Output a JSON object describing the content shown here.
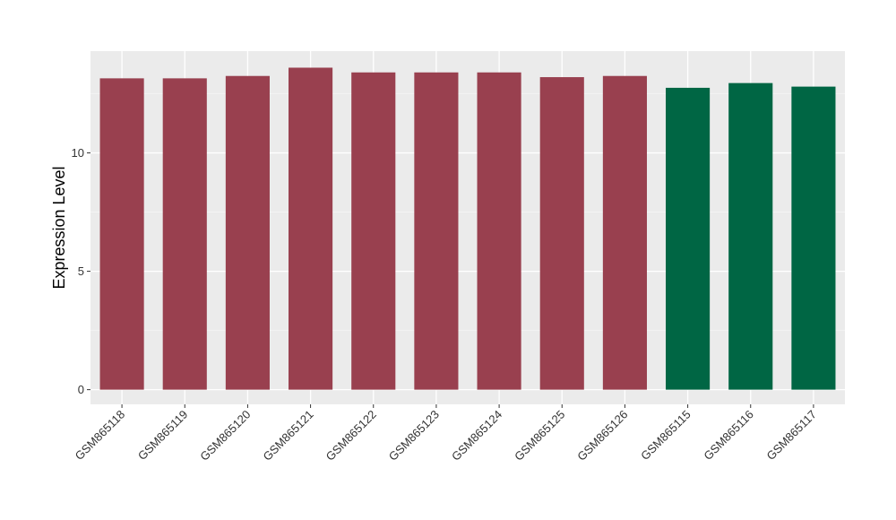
{
  "chart_data": {
    "type": "bar",
    "title": "",
    "xlabel": "",
    "ylabel": "Expression Level",
    "categories": [
      "GSM865118",
      "GSM865119",
      "GSM865120",
      "GSM865121",
      "GSM865122",
      "GSM865123",
      "GSM865124",
      "GSM865125",
      "GSM865126",
      "GSM865115",
      "GSM865116",
      "GSM865117"
    ],
    "values": [
      13.15,
      13.15,
      13.25,
      13.6,
      13.4,
      13.4,
      13.4,
      13.2,
      13.25,
      12.75,
      12.95,
      12.8
    ],
    "groups": [
      "a",
      "a",
      "a",
      "a",
      "a",
      "a",
      "a",
      "a",
      "a",
      "b",
      "b",
      "b"
    ],
    "group_colors": {
      "a": "#99404f",
      "b": "#006644"
    },
    "ylim": [
      -0.62,
      14.3
    ],
    "yticks": [
      0,
      5,
      10
    ],
    "grid": true,
    "panel_background": "#ebebeb",
    "legend": "none"
  }
}
